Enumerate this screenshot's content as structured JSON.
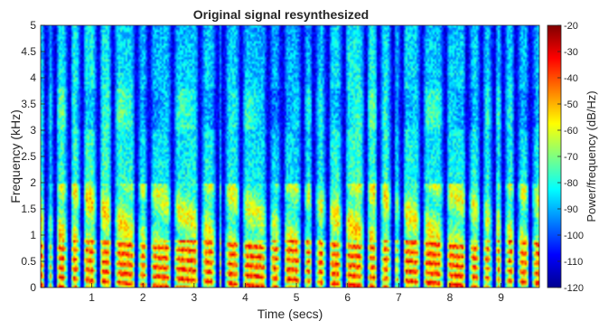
{
  "chart_data": {
    "type": "heatmap",
    "title": "Original signal resynthesized",
    "xlabel": "Time (secs)",
    "ylabel": "Frequency (kHz)",
    "xlim": [
      0,
      9.75
    ],
    "ylim": [
      0,
      5
    ],
    "x_ticks": [
      1,
      2,
      3,
      4,
      5,
      6,
      7,
      8,
      9
    ],
    "y_ticks": [
      0,
      0.5,
      1,
      1.5,
      2,
      2.5,
      3,
      3.5,
      4,
      4.5,
      5
    ],
    "colorbar": {
      "label": "Power/frequency (dB/Hz)",
      "range": [
        -120,
        -20
      ],
      "ticks": [
        -20,
        -30,
        -40,
        -50,
        -60,
        -70,
        -80,
        -90,
        -100,
        -110,
        -120
      ],
      "colormap": "jet"
    },
    "silence_gaps_secs": [
      0.12,
      0.27,
      0.55,
      0.8,
      1.12,
      1.42,
      1.88,
      2.12,
      2.58,
      3.12,
      3.45,
      3.58,
      3.92,
      4.45,
      4.72,
      5.12,
      5.35,
      5.6,
      5.92,
      6.35,
      6.62,
      6.88,
      7.05,
      7.45,
      7.9,
      8.35,
      8.62,
      8.85,
      9.05,
      9.3,
      9.58
    ]
  }
}
